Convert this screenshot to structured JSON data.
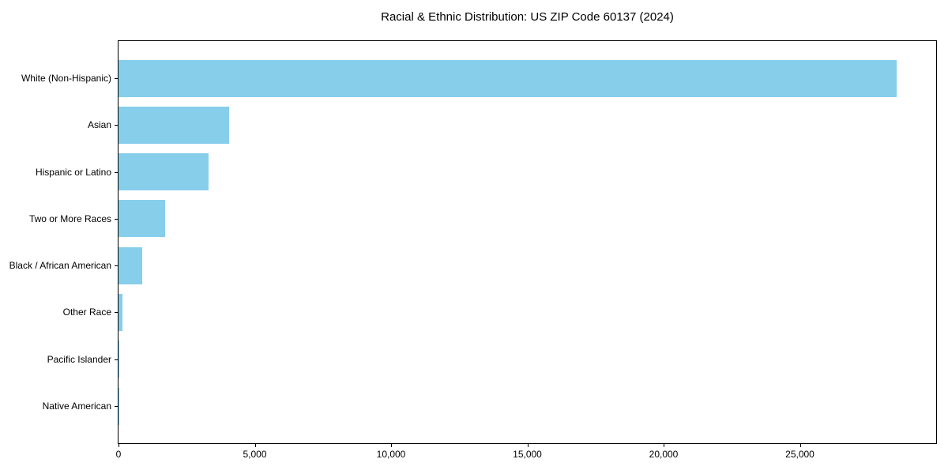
{
  "figure": {
    "title": "Racial & Ethnic Distribution: US ZIP Code 60137 (2024)"
  },
  "colors": {
    "bar": "#87CEEB",
    "axis": "#000000",
    "text": "#000000",
    "background": "#FFFFFF"
  },
  "chart_data": {
    "type": "bar",
    "orientation": "horizontal",
    "title": "Racial & Ethnic Distribution: US ZIP Code 60137 (2024)",
    "categories": [
      "White (Non-Hispanic)",
      "Asian",
      "Hispanic or Latino",
      "Two or More Races",
      "Black / African American",
      "Other Race",
      "Pacific Islander",
      "Native American"
    ],
    "values": [
      28550,
      4050,
      3300,
      1700,
      880,
      145,
      40,
      10
    ],
    "xlabel": "",
    "ylabel": "",
    "xlim": [
      0,
      30000
    ],
    "xticks": [
      0,
      5000,
      10000,
      15000,
      20000,
      25000
    ],
    "xtick_labels": [
      "0",
      "5,000",
      "10,000",
      "15,000",
      "20,000",
      "25,000"
    ],
    "bar_color": "#87CEEB",
    "grid": false,
    "legend": null,
    "sort_order": "descending"
  }
}
